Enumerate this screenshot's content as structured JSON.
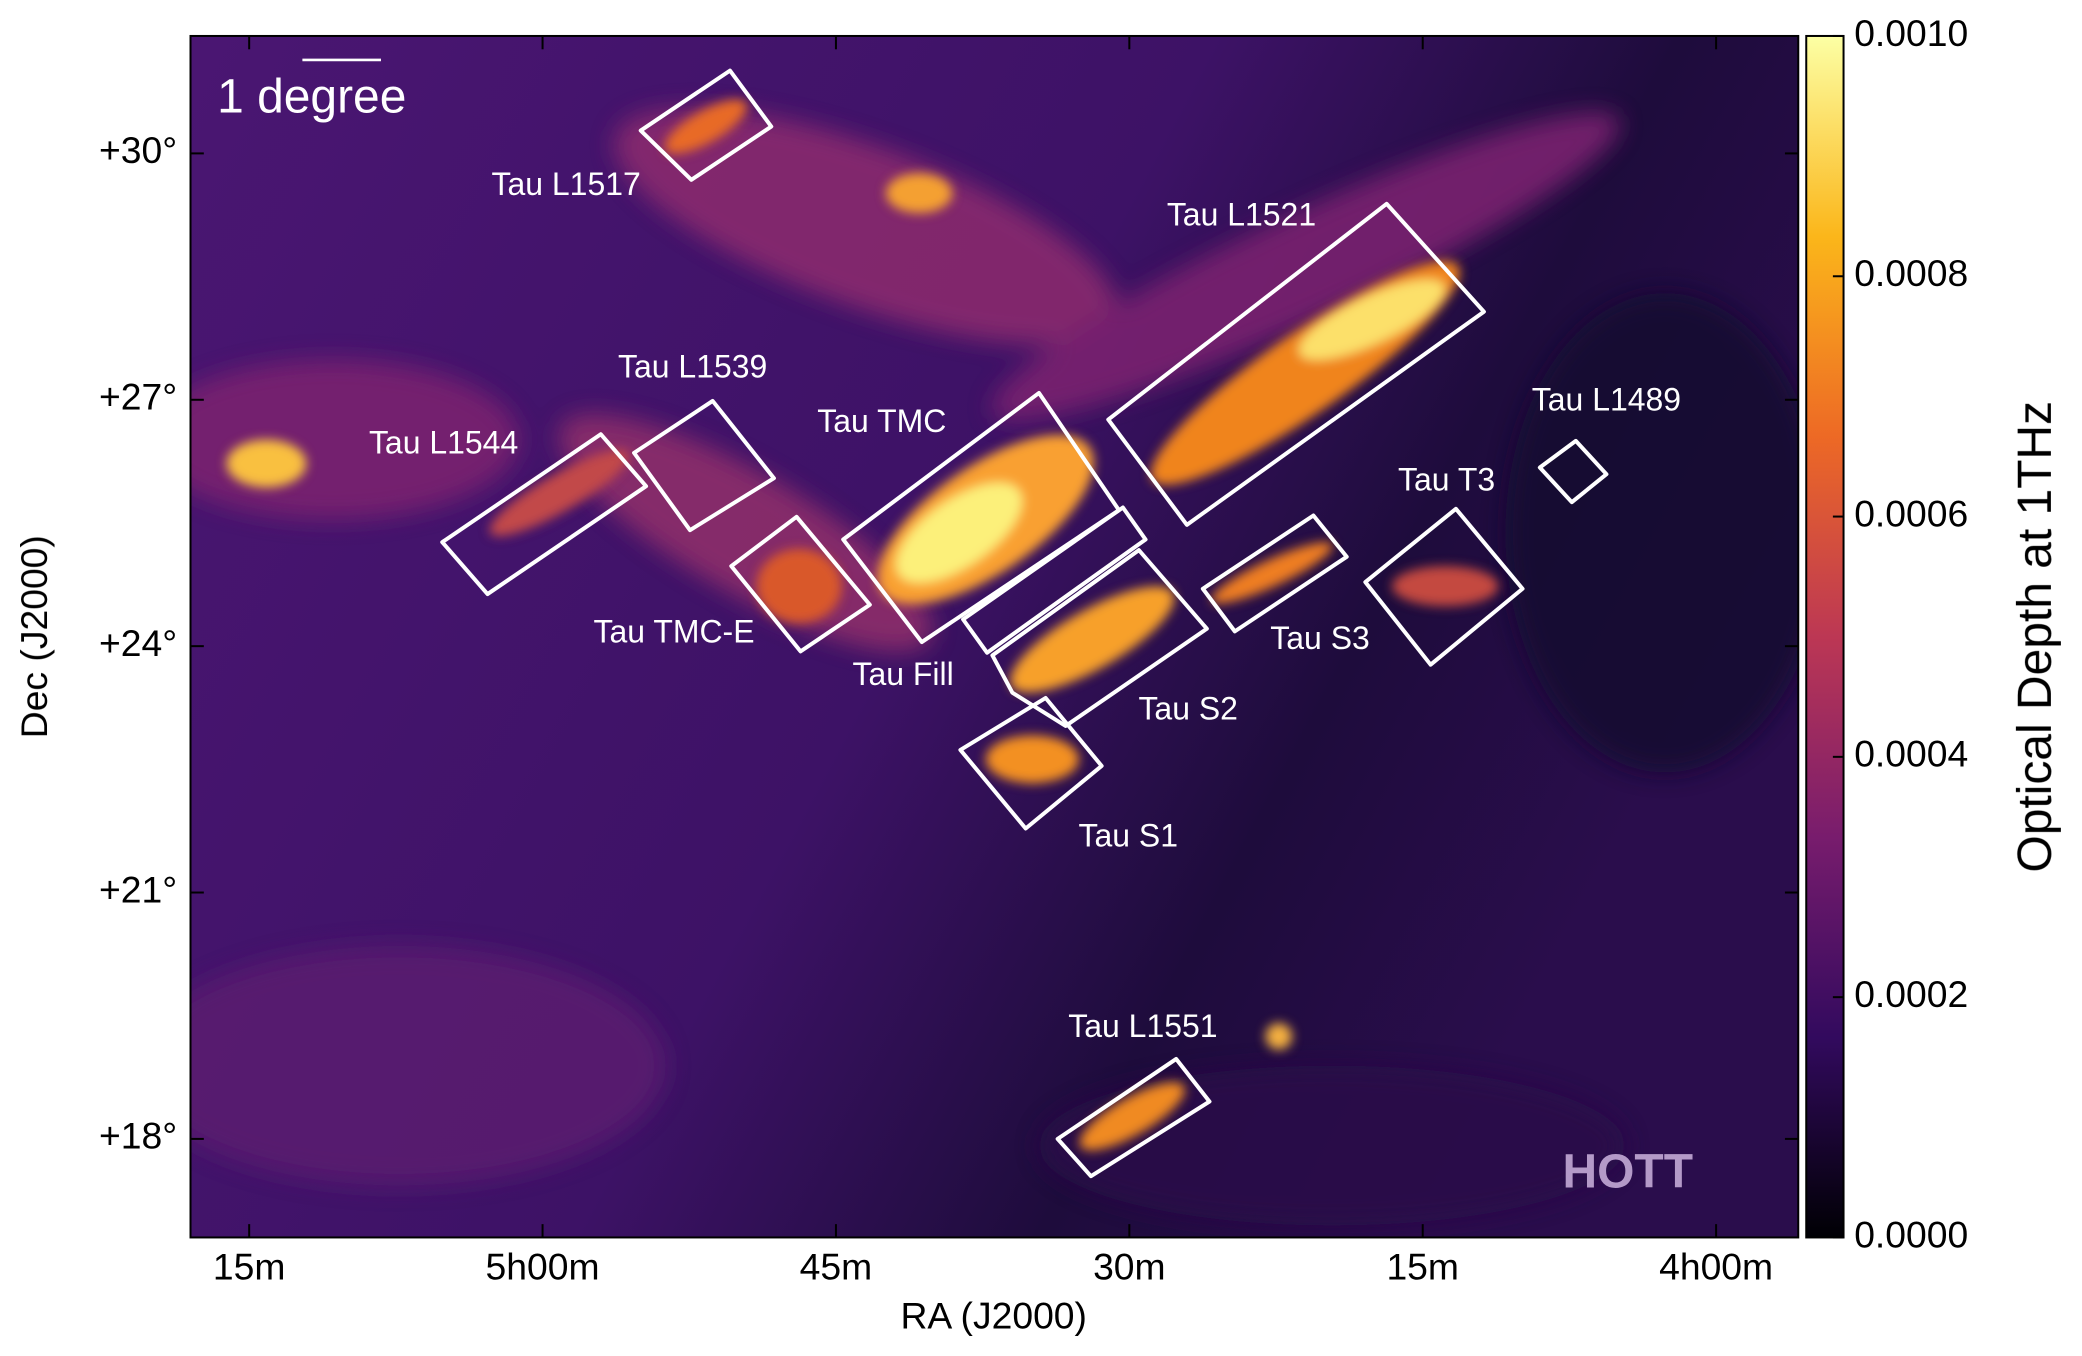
{
  "chart_data": {
    "type": "skymap",
    "x_label": "RA (J2000)",
    "y_label": "Dec (J2000)",
    "xlim": [
      5.3,
      3.93
    ],
    "ylim": [
      16.8,
      31.43
    ],
    "xticks": [
      {
        "value": 5.25,
        "label": "15m"
      },
      {
        "value": 5.0,
        "label": "5h00m"
      },
      {
        "value": 4.75,
        "label": "45m"
      },
      {
        "value": 4.5,
        "label": "30m"
      },
      {
        "value": 4.25,
        "label": "15m"
      },
      {
        "value": 4.0,
        "label": "4h00m"
      }
    ],
    "yticks": [
      {
        "value": 18,
        "label": "+18°"
      },
      {
        "value": 21,
        "label": "+21°"
      },
      {
        "value": 24,
        "label": "+24°"
      },
      {
        "value": 27,
        "label": "+27°"
      },
      {
        "value": 30,
        "label": "+30°"
      }
    ],
    "colorbar_label": "Optical Depth at 1THz",
    "clim": [
      0,
      0.001
    ],
    "colorbar_ticks": [
      {
        "value": 0,
        "label": "0.0000"
      },
      {
        "value": 0.0002,
        "label": "0.0002"
      },
      {
        "value": 0.0004,
        "label": "0.0004"
      },
      {
        "value": 0.0006,
        "label": "0.0006"
      },
      {
        "value": 0.0008,
        "label": "0.0008"
      },
      {
        "value": 0.001,
        "label": "0.0010"
      }
    ],
    "colormap": [
      "#000004",
      "#320a5e",
      "#781c6d",
      "#bc3754",
      "#ed6925",
      "#fbb61a",
      "#fcffa4"
    ],
    "scale_bar_label": "1 degree",
    "watermark": "HOTT",
    "regions": [
      "Tau L1517",
      "Tau L1521",
      "Tau L1539",
      "Tau L1544",
      "Tau TMC",
      "Tau TMC-E",
      "Tau Fill",
      "Tau S2",
      "Tau S1",
      "Tau S3",
      "Tau T3",
      "Tau L1489",
      "Tau L1551"
    ]
  }
}
